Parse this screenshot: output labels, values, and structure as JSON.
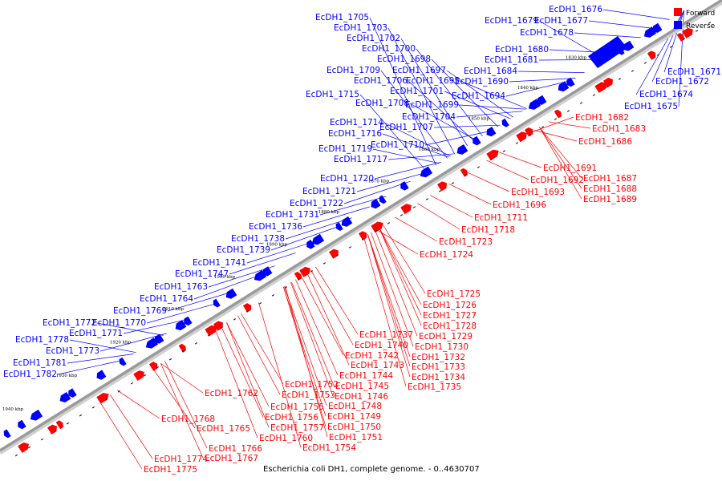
{
  "caption": "Escherichia coli DH1, complete genome. - 0..4630707",
  "legend": [
    {
      "label": "Forward",
      "color": "#ff0000"
    },
    {
      "label": "Reverse",
      "color": "#0000ff"
    }
  ],
  "colors": {
    "forward": "#ff0000",
    "reverse": "#0000ff",
    "axis": "#9a9a9a"
  },
  "ticks": [
    "1830 kbp",
    "1840 kbp",
    "1850 kbp",
    "1860 kbp",
    "1870 kbp",
    "1880 kbp",
    "1890 kbp",
    "1900 kbp",
    "1910 kbp",
    "1920 kbp",
    "1930 kbp",
    "1940 kbp"
  ],
  "reverse_labels": [
    "EcDH1_1705",
    "EcDH1_1703",
    "EcDH1_1702",
    "EcDH1_1700",
    "EcDH1_1698",
    "EcDH1_1709",
    "EcDH1_1697",
    "EcDH1_1706",
    "EcDH1_1695",
    "EcDH1_1701",
    "EcDH1_1715",
    "EcDH1_1708",
    "EcDH1_1699",
    "EcDH1_1704",
    "EcDH1_1714",
    "EcDH1_1707",
    "EcDH1_1716",
    "EcDH1_1710",
    "EcDH1_1719",
    "EcDH1_1717",
    "EcDH1_1720",
    "EcDH1_1721",
    "EcDH1_1722",
    "EcDH1_1731",
    "EcDH1_1736",
    "EcDH1_1738",
    "EcDH1_1739",
    "EcDH1_1741",
    "EcDH1_1747",
    "EcDH1_1763",
    "EcDH1_1764",
    "EcDH1_1769",
    "EcDH1_1772",
    "EcDH1_1770",
    "EcDH1_1771",
    "EcDH1_1778",
    "EcDH1_1773",
    "EcDH1_1781",
    "EcDH1_1782",
    "EcDH1_1679",
    "EcDH1_1676",
    "EcDH1_1677",
    "EcDH1_1678",
    "EcDH1_1680",
    "EcDH1_1681",
    "EcDH1_1684",
    "EcDH1_1690",
    "EcDH1_1694",
    "EcDH1_1671",
    "EcDH1_1672",
    "EcDH1_1674",
    "EcDH1_1675"
  ],
  "forward_labels": [
    "EcDH1_1682",
    "EcDH1_1683",
    "EcDH1_1686",
    "EcDH1_1691",
    "EcDH1_1687",
    "EcDH1_1692",
    "EcDH1_1688",
    "EcDH1_1693",
    "EcDH1_1689",
    "EcDH1_1696",
    "EcDH1_1711",
    "EcDH1_1718",
    "EcDH1_1723",
    "EcDH1_1724",
    "EcDH1_1725",
    "EcDH1_1726",
    "EcDH1_1727",
    "EcDH1_1728",
    "EcDH1_1737",
    "EcDH1_1729",
    "EcDH1_1740",
    "EcDH1_1730",
    "EcDH1_1742",
    "EcDH1_1732",
    "EcDH1_1743",
    "EcDH1_1733",
    "EcDH1_1744",
    "EcDH1_1734",
    "EcDH1_1745",
    "EcDH1_1735",
    "EcDH1_1752",
    "EcDH1_1762",
    "EcDH1_1753",
    "EcDH1_1746",
    "EcDH1_1755",
    "EcDH1_1748",
    "EcDH1_1756",
    "EcDH1_1749",
    "EcDH1_1768",
    "EcDH1_1757",
    "EcDH1_1750",
    "EcDH1_1765",
    "EcDH1_1760",
    "EcDH1_1751",
    "EcDH1_1766",
    "EcDH1_1754",
    "EcDH1_1774",
    "EcDH1_1767",
    "EcDH1_1775"
  ]
}
